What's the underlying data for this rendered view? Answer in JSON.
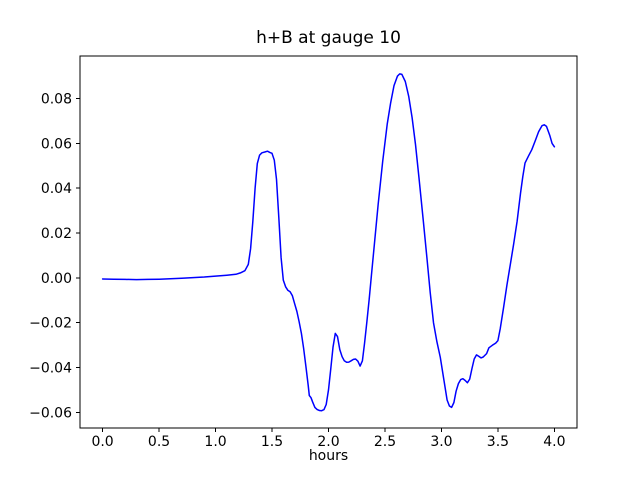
{
  "figure": {
    "background": "#ffffff"
  },
  "chart_data": {
    "type": "line",
    "title": "h+B at gauge 10",
    "xlabel": "hours",
    "ylabel": "",
    "xlim": [
      -0.2,
      4.2
    ],
    "ylim": [
      -0.067,
      0.099
    ],
    "grid": false,
    "legend": false,
    "line_color": "#0000ff",
    "axis_color": "#000000",
    "xticks": {
      "values": [
        0.0,
        0.5,
        1.0,
        1.5,
        2.0,
        2.5,
        3.0,
        3.5,
        4.0
      ],
      "labels": [
        "0.0",
        "0.5",
        "1.0",
        "1.5",
        "2.0",
        "2.5",
        "3.0",
        "3.5",
        "4.0"
      ]
    },
    "yticks": {
      "values": [
        0.08,
        0.06,
        0.04,
        0.02,
        0.0,
        -0.02,
        -0.04,
        -0.06
      ],
      "labels": [
        "0.08",
        "0.06",
        "0.04",
        "0.02",
        "0.00",
        "−0.02",
        "−0.04",
        "−0.06"
      ]
    },
    "series": [
      {
        "name": "h+B",
        "points": [
          [
            0.0,
            -0.0005
          ],
          [
            0.1,
            -0.0006
          ],
          [
            0.2,
            -0.0007
          ],
          [
            0.3,
            -0.0008
          ],
          [
            0.4,
            -0.0007
          ],
          [
            0.5,
            -0.0006
          ],
          [
            0.6,
            -0.0004
          ],
          [
            0.7,
            -0.0002
          ],
          [
            0.8,
            0.0001
          ],
          [
            0.9,
            0.0004
          ],
          [
            1.0,
            0.0008
          ],
          [
            1.1,
            0.0012
          ],
          [
            1.18,
            0.0016
          ],
          [
            1.22,
            0.0022
          ],
          [
            1.26,
            0.0032
          ],
          [
            1.29,
            0.006
          ],
          [
            1.31,
            0.013
          ],
          [
            1.33,
            0.025
          ],
          [
            1.35,
            0.04
          ],
          [
            1.37,
            0.051
          ],
          [
            1.39,
            0.0548
          ],
          [
            1.41,
            0.0558
          ],
          [
            1.44,
            0.0562
          ],
          [
            1.46,
            0.0565
          ],
          [
            1.48,
            0.056
          ],
          [
            1.5,
            0.0556
          ],
          [
            1.52,
            0.0525
          ],
          [
            1.54,
            0.044
          ],
          [
            1.56,
            0.027
          ],
          [
            1.58,
            0.009
          ],
          [
            1.6,
            -0.001
          ],
          [
            1.62,
            -0.004
          ],
          [
            1.64,
            -0.0055
          ],
          [
            1.66,
            -0.0062
          ],
          [
            1.68,
            -0.008
          ],
          [
            1.7,
            -0.0115
          ],
          [
            1.72,
            -0.015
          ],
          [
            1.74,
            -0.0195
          ],
          [
            1.76,
            -0.0248
          ],
          [
            1.78,
            -0.0314
          ],
          [
            1.8,
            -0.0395
          ],
          [
            1.82,
            -0.048
          ],
          [
            1.83,
            -0.0525
          ],
          [
            1.845,
            -0.0535
          ],
          [
            1.86,
            -0.0555
          ],
          [
            1.88,
            -0.0578
          ],
          [
            1.9,
            -0.0588
          ],
          [
            1.92,
            -0.0592
          ],
          [
            1.94,
            -0.0593
          ],
          [
            1.96,
            -0.0588
          ],
          [
            1.98,
            -0.0565
          ],
          [
            2.0,
            -0.05
          ],
          [
            2.02,
            -0.0405
          ],
          [
            2.04,
            -0.031
          ],
          [
            2.06,
            -0.0248
          ],
          [
            2.08,
            -0.0262
          ],
          [
            2.1,
            -0.032
          ],
          [
            2.12,
            -0.0352
          ],
          [
            2.14,
            -0.037
          ],
          [
            2.16,
            -0.0377
          ],
          [
            2.18,
            -0.0376
          ],
          [
            2.2,
            -0.037
          ],
          [
            2.22,
            -0.0364
          ],
          [
            2.24,
            -0.0362
          ],
          [
            2.26,
            -0.0372
          ],
          [
            2.28,
            -0.0394
          ],
          [
            2.3,
            -0.037
          ],
          [
            2.32,
            -0.029
          ],
          [
            2.34,
            -0.0195
          ],
          [
            2.36,
            -0.0095
          ],
          [
            2.38,
            0.001
          ],
          [
            2.41,
            0.017
          ],
          [
            2.44,
            0.033
          ],
          [
            2.48,
            0.052
          ],
          [
            2.52,
            0.0685
          ],
          [
            2.55,
            0.078
          ],
          [
            2.58,
            0.0858
          ],
          [
            2.61,
            0.09
          ],
          [
            2.63,
            0.091
          ],
          [
            2.65,
            0.0908
          ],
          [
            2.68,
            0.0876
          ],
          [
            2.71,
            0.081
          ],
          [
            2.74,
            0.0715
          ],
          [
            2.77,
            0.0595
          ],
          [
            2.8,
            0.045
          ],
          [
            2.84,
            0.025
          ],
          [
            2.87,
            0.0095
          ],
          [
            2.9,
            -0.0065
          ],
          [
            2.93,
            -0.02
          ],
          [
            2.96,
            -0.0285
          ],
          [
            2.99,
            -0.0355
          ],
          [
            3.02,
            -0.045
          ],
          [
            3.05,
            -0.0545
          ],
          [
            3.07,
            -0.0572
          ],
          [
            3.09,
            -0.0578
          ],
          [
            3.11,
            -0.0556
          ],
          [
            3.13,
            -0.0506
          ],
          [
            3.15,
            -0.0472
          ],
          [
            3.17,
            -0.0454
          ],
          [
            3.19,
            -0.045
          ],
          [
            3.21,
            -0.0458
          ],
          [
            3.23,
            -0.0468
          ],
          [
            3.25,
            -0.0452
          ],
          [
            3.27,
            -0.0404
          ],
          [
            3.29,
            -0.0362
          ],
          [
            3.31,
            -0.0344
          ],
          [
            3.33,
            -0.035
          ],
          [
            3.35,
            -0.0357
          ],
          [
            3.37,
            -0.0353
          ],
          [
            3.4,
            -0.0338
          ],
          [
            3.42,
            -0.0312
          ],
          [
            3.45,
            -0.0301
          ],
          [
            3.48,
            -0.0291
          ],
          [
            3.5,
            -0.028
          ],
          [
            3.52,
            -0.0228
          ],
          [
            3.55,
            -0.0132
          ],
          [
            3.58,
            -0.003
          ],
          [
            3.61,
            0.0062
          ],
          [
            3.64,
            0.0152
          ],
          [
            3.67,
            0.0252
          ],
          [
            3.7,
            0.0377
          ],
          [
            3.72,
            0.0452
          ],
          [
            3.74,
            0.0512
          ],
          [
            3.77,
            0.0543
          ],
          [
            3.8,
            0.0572
          ],
          [
            3.83,
            0.0611
          ],
          [
            3.86,
            0.0652
          ],
          [
            3.89,
            0.0679
          ],
          [
            3.91,
            0.0683
          ],
          [
            3.93,
            0.0676
          ],
          [
            3.96,
            0.0634
          ],
          [
            3.98,
            0.06
          ],
          [
            4.0,
            0.0585
          ]
        ]
      }
    ]
  }
}
